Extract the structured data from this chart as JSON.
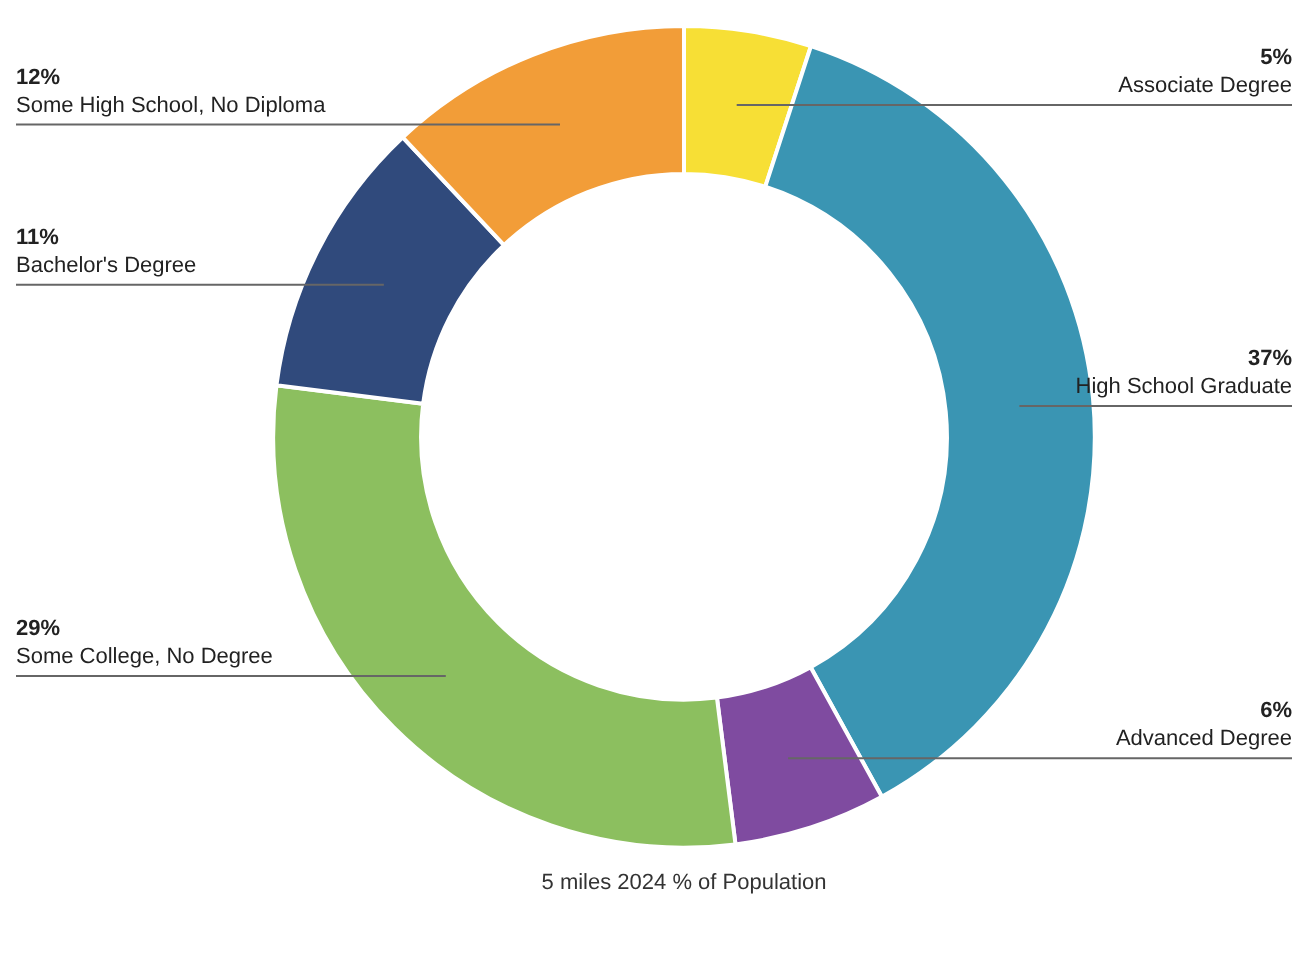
{
  "chart_data": {
    "type": "donut",
    "title": "5 miles 2024 % of Population",
    "categories": [
      "Associate Degree",
      "High School Graduate",
      "Advanced Degree",
      "Some College, No Degree",
      "Bachelor's Degree",
      "Some High School, No Diploma"
    ],
    "values": [
      5,
      37,
      6,
      29,
      11,
      12
    ],
    "colors": [
      "#f7df35",
      "#3a95b3",
      "#7f4ba0",
      "#8cbf5f",
      "#304a7c",
      "#f29d38"
    ],
    "value_labels": [
      "5%",
      "37%",
      "6%",
      "29%",
      "11%",
      "12%"
    ],
    "legend": false
  }
}
